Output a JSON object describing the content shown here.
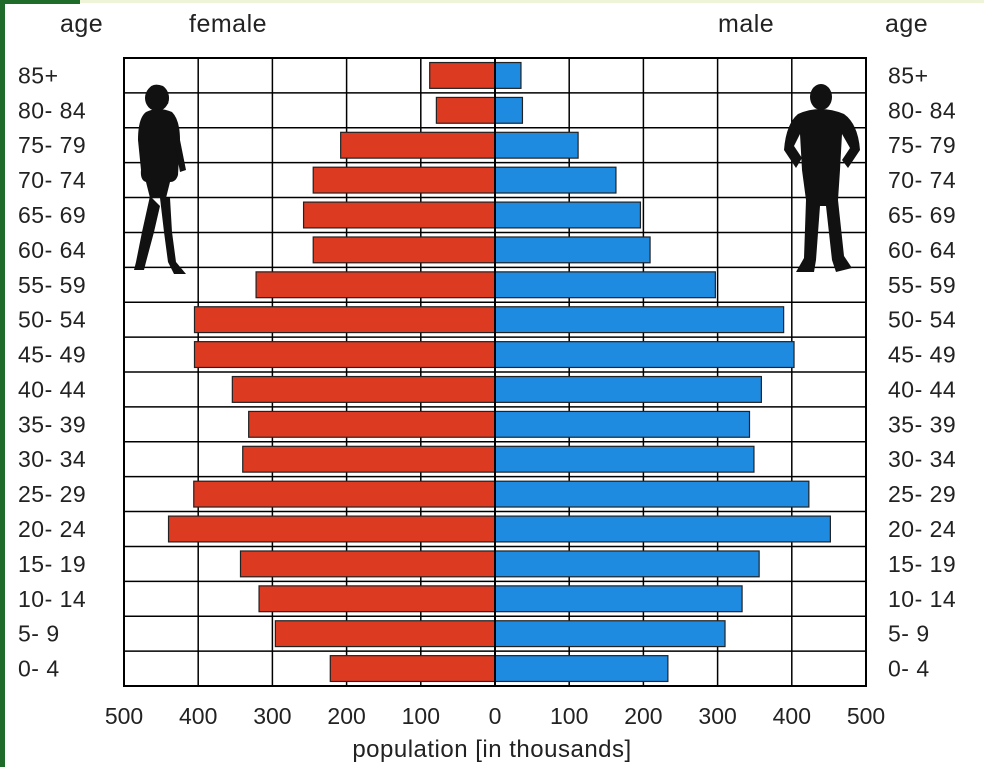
{
  "chart_data": {
    "type": "bar",
    "orientation": "horizontal",
    "layout": "population pyramid",
    "categories": [
      "0- 4",
      "5- 9",
      "10- 14",
      "15- 19",
      "20- 24",
      "25- 29",
      "30- 34",
      "35- 39",
      "40- 44",
      "45- 49",
      "50- 54",
      "55- 59",
      "60- 64",
      "65- 69",
      "70- 74",
      "75- 79",
      "80- 84",
      "85+"
    ],
    "series": [
      {
        "name": "female",
        "side": "left",
        "color": "#dd3a22",
        "values": [
          222,
          296,
          318,
          343,
          440,
          406,
          340,
          332,
          354,
          405,
          405,
          322,
          245,
          258,
          245,
          208,
          79,
          88
        ]
      },
      {
        "name": "male",
        "side": "right",
        "color": "#1e8ae0",
        "values": [
          233,
          310,
          333,
          356,
          452,
          423,
          349,
          343,
          359,
          403,
          389,
          297,
          209,
          196,
          163,
          112,
          37,
          35
        ]
      }
    ],
    "xlabel": "population [in thousands]",
    "xlim": [
      -500,
      500
    ],
    "xticks": [
      "500",
      "400",
      "300",
      "200",
      "100",
      "0",
      "100",
      "200",
      "300",
      "400",
      "500"
    ],
    "ylabel_left": "age",
    "ylabel_right": "age",
    "grid": true
  },
  "headers": {
    "age_left": "age",
    "female": "female",
    "male": "male",
    "age_right": "age"
  },
  "icons": {
    "female": "female-silhouette-icon",
    "male": "male-silhouette-icon"
  },
  "colors": {
    "female": "#dd3a22",
    "male": "#1e8ae0",
    "grid": "#000000",
    "corner_accent": "#1f6b2a"
  }
}
